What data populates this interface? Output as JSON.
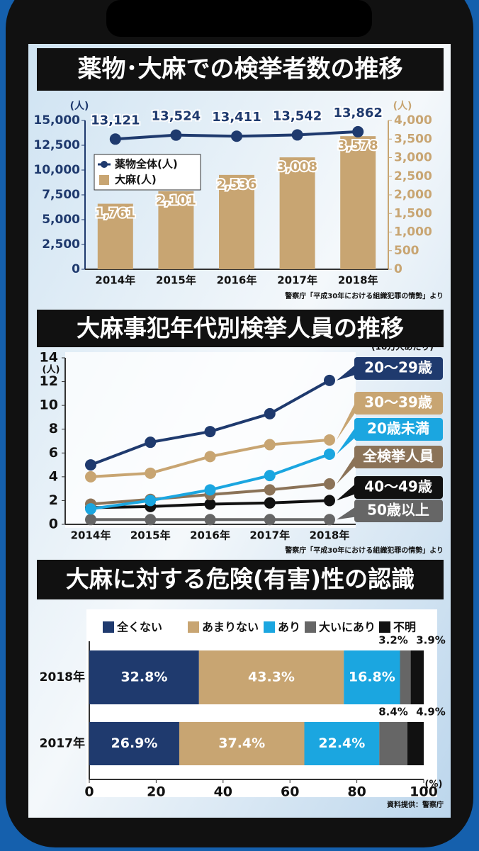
{
  "chart_data": [
    {
      "type": "bar",
      "title": "薬物･大麻での検挙者数の推移",
      "categories": [
        "2014年",
        "2015年",
        "2016年",
        "2017年",
        "2018年"
      ],
      "series": [
        {
          "name": "薬物全体(人)",
          "type": "line",
          "color": "#1f3a6e",
          "values": [
            13121,
            13524,
            13411,
            13542,
            13862
          ],
          "value_labels": [
            "13,121",
            "13,524",
            "13,411",
            "13,542",
            "13,862"
          ]
        },
        {
          "name": "大麻(人)",
          "type": "bar",
          "axis": "y2",
          "color": "#c8a572",
          "values": [
            1761,
            2101,
            2536,
            3008,
            3578
          ],
          "value_labels": [
            "1,761",
            "2,101",
            "2,536",
            "3,008",
            "3,578"
          ]
        }
      ],
      "ylim": [
        0,
        15000
      ],
      "yticks": [
        0,
        {
          "value": 2500,
          "label": "2,500"
        },
        {
          "value": 5000,
          "label": "5,000"
        },
        {
          "value": 7500,
          "label": "7,500"
        },
        {
          "value": 10000,
          "label": "10,000"
        },
        {
          "value": 12500,
          "label": "12,500"
        },
        {
          "value": 15000,
          "label": "15,000"
        }
      ],
      "y2lim": [
        0,
        4000
      ],
      "y2ticks": [
        0,
        500,
        {
          "value": 1000,
          "label": "1,000"
        },
        {
          "value": 1500,
          "label": "1,500"
        },
        {
          "value": 2000,
          "label": "2,000"
        },
        {
          "value": 2500,
          "label": "2,500"
        },
        {
          "value": 3000,
          "label": "3,000"
        },
        {
          "value": 3500,
          "label": "3,500"
        },
        {
          "value": 4000,
          "label": "4,000"
        }
      ],
      "y_label": "(人)",
      "y2_label": "(人)",
      "source": "警察庁「平成30年における組織犯罪の情勢」より"
    },
    {
      "type": "line",
      "title": "大麻事犯年代別検挙人員の推移",
      "subtitle": "(10万人あたり)",
      "categories": [
        "2014年",
        "2015年",
        "2016年",
        "2017年",
        "2018年"
      ],
      "series": [
        {
          "name": "20～29歳",
          "color": "#1f3a6e",
          "values": [
            5.0,
            6.9,
            7.8,
            9.3,
            12.1
          ]
        },
        {
          "name": "30～39歳",
          "color": "#c8a572",
          "values": [
            4.0,
            4.3,
            5.7,
            6.7,
            7.1
          ]
        },
        {
          "name": "20歳未満",
          "color": "#1ba6e0",
          "values": [
            1.3,
            2.0,
            2.9,
            4.1,
            5.9
          ]
        },
        {
          "name": "全検挙人員",
          "color": "#8b7358",
          "values": [
            1.7,
            2.1,
            2.5,
            2.9,
            3.4
          ]
        },
        {
          "name": "40～49歳",
          "color": "#111111",
          "values": [
            1.4,
            1.5,
            1.7,
            1.8,
            2.0
          ]
        },
        {
          "name": "50歳以上",
          "color": "#666666",
          "values": [
            0.4,
            0.4,
            0.4,
            0.4,
            0.4
          ]
        }
      ],
      "ylim": [
        0,
        14
      ],
      "yticks": [
        0,
        2,
        4,
        6,
        8,
        10,
        12,
        14
      ],
      "y_label": "(人)",
      "source": "警察庁「平成30年における組織犯罪の情勢」より"
    },
    {
      "type": "bar",
      "orientation": "horizontal",
      "stacked": true,
      "title": "大麻に対する危険(有害)性の認識",
      "categories": [
        "2018年",
        "2017年"
      ],
      "series": [
        {
          "name": "全くない",
          "color": "#1f3a6e",
          "values": [
            32.8,
            26.9
          ],
          "value_labels": [
            "32.8%",
            "26.9%"
          ]
        },
        {
          "name": "あまりない",
          "color": "#c8a572",
          "values": [
            43.3,
            37.4
          ],
          "value_labels": [
            "43.3%",
            "37.4%"
          ]
        },
        {
          "name": "あり",
          "color": "#1ba6e0",
          "values": [
            16.8,
            22.4
          ],
          "value_labels": [
            "16.8%",
            "22.4%"
          ]
        },
        {
          "name": "大いにあり",
          "color": "#666666",
          "values": [
            3.2,
            8.4
          ],
          "value_labels": [
            "3.2%",
            "8.4%"
          ]
        },
        {
          "name": "不明",
          "color": "#111111",
          "values": [
            3.9,
            4.9
          ],
          "value_labels": [
            "3.9%",
            "4.9%"
          ]
        }
      ],
      "xlim": [
        0,
        100
      ],
      "xticks": [
        0,
        20,
        40,
        60,
        80,
        100
      ],
      "x_label": "(%)",
      "source": "資料提供：警察庁"
    }
  ]
}
